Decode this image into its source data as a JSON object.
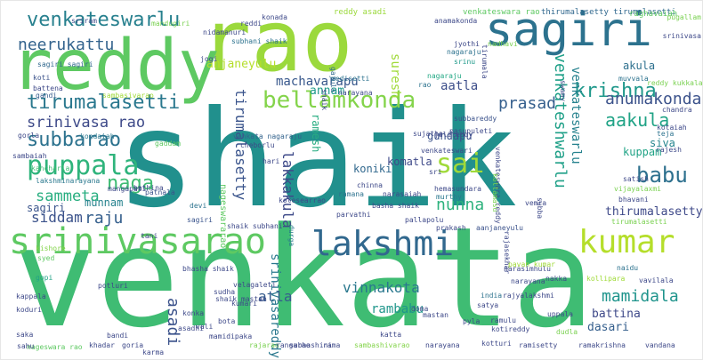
{
  "words": [
    {
      "text": "shaik",
      "color": "#21908d"
    },
    {
      "text": "venkata",
      "color": "#3fbc73"
    },
    {
      "text": "rao",
      "color": "#9bd93c"
    },
    {
      "text": "reddy",
      "color": "#5ec962"
    },
    {
      "text": "sagiri",
      "color": "#2c728e"
    },
    {
      "text": "srinivasarao",
      "color": "#5ec962"
    },
    {
      "text": "lakshmi",
      "color": "#31688e"
    },
    {
      "text": "kumar",
      "color": "#b5de2b"
    },
    {
      "text": "venkateswarlu",
      "color": "#27808e"
    },
    {
      "text": "neerukattu",
      "color": "#33638d"
    },
    {
      "text": "tirumalasetti",
      "color": "#2a788e"
    },
    {
      "text": "bellamkonda",
      "color": "#84d44b"
    },
    {
      "text": "krishna",
      "color": "#1f988b"
    },
    {
      "text": "anumakonda",
      "color": "#3b528b"
    },
    {
      "text": "srinivasa rao",
      "color": "#3e4a89"
    },
    {
      "text": "subbarao",
      "color": "#2c728e"
    },
    {
      "text": "puppala",
      "color": "#2fb47c"
    },
    {
      "text": "sai",
      "color": "#a0da39"
    },
    {
      "text": "naga",
      "color": "#3fbc73"
    },
    {
      "text": "babu",
      "color": "#2d708e"
    },
    {
      "text": "prasad",
      "color": "#355f8d"
    },
    {
      "text": "aakula",
      "color": "#20a386"
    },
    {
      "text": "sammeta",
      "color": "#28ae80"
    },
    {
      "text": "venkateshwarlu",
      "color": "#1fa088"
    },
    {
      "text": "venkateswarlu",
      "color": "#26828e"
    },
    {
      "text": "tirumalasetty",
      "color": "#3a548c"
    },
    {
      "text": "lakkakula",
      "color": "#3e4a89"
    },
    {
      "text": "nunna",
      "color": "#2db27d"
    },
    {
      "text": "siddam",
      "color": "#3b528b"
    },
    {
      "text": "raju",
      "color": "#355f8d"
    },
    {
      "text": "machavarapu",
      "color": "#38588c"
    },
    {
      "text": "anjaneyulu",
      "color": "#b5de2b"
    },
    {
      "text": "annam",
      "color": "#1f9a8a"
    },
    {
      "text": "suresh",
      "color": "#a0da39"
    },
    {
      "text": "aatla",
      "color": "#3d4e8a"
    },
    {
      "text": "akula",
      "color": "#2d708e"
    },
    {
      "text": "komatla",
      "color": "#3e4989"
    },
    {
      "text": "koniki",
      "color": "#31688e"
    },
    {
      "text": "gundapu",
      "color": "#3b528b"
    },
    {
      "text": "siva",
      "color": "#25858e"
    },
    {
      "text": "kuppam",
      "color": "#20a386"
    },
    {
      "text": "thirumalasetty",
      "color": "#3e4989"
    },
    {
      "text": "vinnakota",
      "color": "#2a788e"
    },
    {
      "text": "mamidala",
      "color": "#1f948c"
    },
    {
      "text": "asadi",
      "color": "#3b528b"
    },
    {
      "text": "atla",
      "color": "#365c8d"
    },
    {
      "text": "rambabu",
      "color": "#1f968b"
    },
    {
      "text": "battina",
      "color": "#3e4989"
    },
    {
      "text": "dasari",
      "color": "#355f8d"
    },
    {
      "text": "srinivasareddy",
      "color": "#2a788e"
    },
    {
      "text": "ramesh",
      "color": "#27ad81"
    },
    {
      "text": "munnam",
      "color": "#26828e"
    },
    {
      "text": "sagiri",
      "color": "#3a548c"
    },
    {
      "text": "reddy asadi",
      "color": "#9bd93c"
    },
    {
      "text": "venkateswara rao",
      "color": "#5ec962"
    },
    {
      "text": "thirumalasetty tirumalasetti",
      "color": "#31688e"
    },
    {
      "text": "raghavaiah",
      "color": "#5ec962"
    },
    {
      "text": "srinivasa",
      "color": "#3e4989"
    },
    {
      "text": "jyothi",
      "color": "#3e4989"
    },
    {
      "text": "nagaraju",
      "color": "#2c728e"
    },
    {
      "text": "srinu",
      "color": "#1f9a8a"
    },
    {
      "text": "subbareddy",
      "color": "#3b528b"
    },
    {
      "text": "kotaiah",
      "color": "#3e4989"
    },
    {
      "text": "reddy kukkala",
      "color": "#7ad151"
    },
    {
      "text": "nidamanuri",
      "color": "#3e4989"
    },
    {
      "text": "subhani shaik",
      "color": "#2c728e"
    },
    {
      "text": "gajula",
      "color": "#31688e"
    },
    {
      "text": "medisetti",
      "color": "#2c728e"
    },
    {
      "text": "nagaraju",
      "color": "#22a884"
    },
    {
      "text": "muvvala",
      "color": "#2c728e"
    },
    {
      "text": "sagiri sagiri",
      "color": "#31688e"
    },
    {
      "text": "koti",
      "color": "#3b528b"
    },
    {
      "text": "battena",
      "color": "#3e4989"
    },
    {
      "text": "gandi",
      "color": "#365c8d"
    },
    {
      "text": "sambasivarao",
      "color": "#a0da39"
    },
    {
      "text": "kondaiah",
      "color": "#2a788e"
    },
    {
      "text": "venkata nagaraju",
      "color": "#33638d"
    },
    {
      "text": "cheborlu",
      "color": "#3e4989"
    },
    {
      "text": "sambaiah",
      "color": "#3e4989"
    },
    {
      "text": "kancharla",
      "color": "#3fbc73"
    },
    {
      "text": "nageswararao",
      "color": "#5ec962"
    },
    {
      "text": "lakshminarayana",
      "color": "#2a788e"
    },
    {
      "text": "sagiri",
      "color": "#3a548c"
    },
    {
      "text": "shaik subhani",
      "color": "#3e4989"
    },
    {
      "text": "kishore",
      "color": "#84d44b"
    },
    {
      "text": "gopi",
      "color": "#20a386"
    },
    {
      "text": "syed",
      "color": "#5ec962"
    },
    {
      "text": "bhasha shaik",
      "color": "#3e4989"
    },
    {
      "text": "potluri",
      "color": "#3e4989"
    },
    {
      "text": "kappala",
      "color": "#3e4989"
    },
    {
      "text": "koduri",
      "color": "#3e4989"
    },
    {
      "text": "patnala",
      "color": "#3b528b"
    },
    {
      "text": "bathina",
      "color": "#3e4989"
    },
    {
      "text": "devi",
      "color": "#2c728e"
    },
    {
      "text": "chinna",
      "color": "#3e4989"
    },
    {
      "text": "ramana",
      "color": "#2c728e"
    },
    {
      "text": "narasaiah",
      "color": "#3e4989"
    },
    {
      "text": "basha shaik",
      "color": "#3e4989"
    },
    {
      "text": "hemasundara",
      "color": "#3e4989"
    },
    {
      "text": "murthy",
      "color": "#2a788e"
    },
    {
      "text": "pallapolu",
      "color": "#3e4989"
    },
    {
      "text": "prakash",
      "color": "#3e4989"
    },
    {
      "text": "aanjaneyulu",
      "color": "#3b528b"
    },
    {
      "text": "tirumalasetti",
      "color": "#7ad151"
    },
    {
      "text": "narasimhulu",
      "color": "#3e4989"
    },
    {
      "text": "narayana",
      "color": "#3e4989"
    },
    {
      "text": "nakka",
      "color": "#3e4989"
    },
    {
      "text": "vavilala",
      "color": "#3e4989"
    },
    {
      "text": "kollipara",
      "color": "#a0da39"
    },
    {
      "text": "naidu",
      "color": "#2c728e"
    },
    {
      "text": "pavan kumar",
      "color": "#a0da39"
    },
    {
      "text": "velagaleti",
      "color": "#3e4989"
    },
    {
      "text": "kumari",
      "color": "#3e4989"
    },
    {
      "text": "shaik mastan",
      "color": "#3e4989"
    },
    {
      "text": "konka",
      "color": "#3e4989"
    },
    {
      "text": "sudha",
      "color": "#3e4989"
    },
    {
      "text": "bota",
      "color": "#3e4989"
    },
    {
      "text": "india",
      "color": "#2c728e"
    },
    {
      "text": "rajyalakshmi",
      "color": "#3e4989"
    },
    {
      "text": "satya",
      "color": "#3e4989"
    },
    {
      "text": "pyla",
      "color": "#3e4989"
    },
    {
      "text": "doma",
      "color": "#3e4989"
    },
    {
      "text": "mastan",
      "color": "#3e4989"
    },
    {
      "text": "ramulu",
      "color": "#3e4989"
    },
    {
      "text": "kotireddy",
      "color": "#3e4989"
    },
    {
      "text": "uppala",
      "color": "#3e4989"
    },
    {
      "text": "dudla",
      "color": "#7ad151"
    },
    {
      "text": "asadhi",
      "color": "#3e4989"
    },
    {
      "text": "mamidipaka",
      "color": "#3e4989"
    },
    {
      "text": "vali",
      "color": "#3e4989"
    },
    {
      "text": "bandi",
      "color": "#3e4989"
    },
    {
      "text": "khadar",
      "color": "#3e4989"
    },
    {
      "text": "goria",
      "color": "#3e4989"
    },
    {
      "text": "nageswara rao",
      "color": "#5ec962"
    },
    {
      "text": "rajarao",
      "color": "#7ad151"
    },
    {
      "text": "rangarao",
      "color": "#3e4989"
    },
    {
      "text": "subhashini",
      "color": "#3e4989"
    },
    {
      "text": "rama",
      "color": "#3e4989"
    },
    {
      "text": "sambashivarao",
      "color": "#84d44b"
    },
    {
      "text": "narayana",
      "color": "#3e4989"
    },
    {
      "text": "kotturi",
      "color": "#3e4989"
    },
    {
      "text": "ramisetty",
      "color": "#3e4989"
    },
    {
      "text": "ramakrishna",
      "color": "#3e4989"
    },
    {
      "text": "vandana",
      "color": "#3e4989"
    },
    {
      "text": "saka",
      "color": "#3e4989"
    },
    {
      "text": "sahu",
      "color": "#3e4989"
    },
    {
      "text": "rao",
      "color": "#2c728e"
    },
    {
      "text": "kotesearrao",
      "color": "#3e4989"
    },
    {
      "text": "hari",
      "color": "#3e4989"
    },
    {
      "text": "durga",
      "color": "#2a788e"
    },
    {
      "text": "vijayalaxmi",
      "color": "#7ad151"
    },
    {
      "text": "bhavani",
      "color": "#3e4989"
    },
    {
      "text": "satish",
      "color": "#3e4989"
    },
    {
      "text": "teja",
      "color": "#2c728e"
    },
    {
      "text": "rajesh",
      "color": "#3e4989"
    },
    {
      "text": "chandra",
      "color": "#3e4989"
    },
    {
      "text": "venkateswari",
      "color": "#3e4989"
    },
    {
      "text": "sri",
      "color": "#3e4989"
    },
    {
      "text": "vemra",
      "color": "#3e4989"
    },
    {
      "text": "subba",
      "color": "#3e4989"
    },
    {
      "text": "parvathi",
      "color": "#3e4989"
    },
    {
      "text": "sujatha",
      "color": "#3e4989"
    },
    {
      "text": "gaddam",
      "color": "#5ec962"
    },
    {
      "text": "gorla",
      "color": "#3e4989"
    },
    {
      "text": "karma",
      "color": "#3e4989"
    },
    {
      "text": "pugallam",
      "color": "#7ad151"
    },
    {
      "text": "sriram",
      "color": "#3e4989"
    },
    {
      "text": "mandugiri",
      "color": "#7ad151"
    },
    {
      "text": "jogi",
      "color": "#3e4989"
    },
    {
      "text": "konada",
      "color": "#3e4989"
    },
    {
      "text": "reddi",
      "color": "#3e4989"
    },
    {
      "text": "narayana",
      "color": "#3e4989"
    },
    {
      "text": "nadhavi",
      "color": "#7ad151"
    },
    {
      "text": "jalireddy",
      "color": "#3e4989"
    },
    {
      "text": "anamakonda",
      "color": "#3e4989"
    },
    {
      "text": "tirumala",
      "color": "#3e4989"
    },
    {
      "text": "shaik",
      "color": "#3e4989"
    },
    {
      "text": "katta",
      "color": "#3e4989"
    },
    {
      "text": "swamy",
      "color": "#3e4989"
    },
    {
      "text": "venkateswara reddy",
      "color": "#3e4989"
    },
    {
      "text": "rajasekhar",
      "color": "#3e4989"
    },
    {
      "text": "kottamasu",
      "color": "#7ad151"
    },
    {
      "text": "pasupuleti",
      "color": "#3e4989"
    },
    {
      "text": "mangapati",
      "color": "#3e4989"
    },
    {
      "text": "tani",
      "color": "#3e4989"
    }
  ]
}
